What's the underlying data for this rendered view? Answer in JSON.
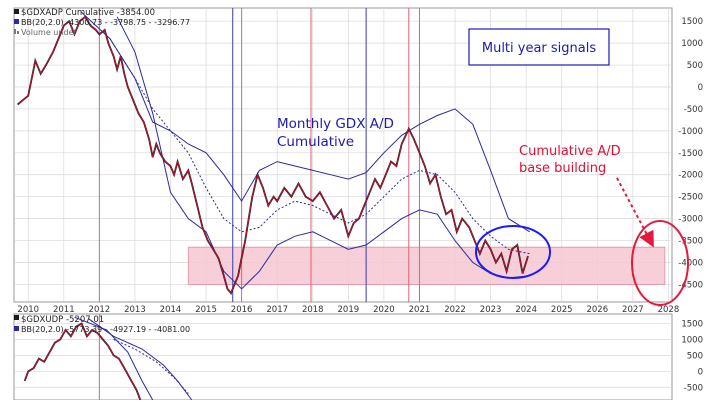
{
  "chart_data": [
    {
      "type": "line",
      "legend": [
        {
          "label": "$GDXADP Cumulative -3854.00",
          "marker": "black-square"
        },
        {
          "label": "BB(20,2.0) -4300.73 - -3798.75 - -3296.77",
          "marker": "blue-square"
        },
        {
          "label": "Volume undef",
          "marker": "grey-bars"
        }
      ],
      "annotations": [
        {
          "text": "Multi year signals",
          "boxed": true
        },
        {
          "text": "Monthly GDX A/D"
        },
        {
          "text": "Cumulative"
        },
        {
          "text": "Cumulative A/D"
        },
        {
          "text": "base building"
        }
      ],
      "x_ticks": [
        "2010",
        "2011",
        "2012",
        "2013",
        "2014",
        "2015",
        "2016",
        "2017",
        "2018",
        "2019",
        "2020",
        "2021",
        "2022",
        "2023",
        "2024",
        "2025",
        "2026",
        "2027",
        "2028"
      ],
      "y_ticks": [
        1500,
        1000,
        500,
        0,
        -500,
        -1000,
        -1500,
        -2000,
        -2500,
        -3000,
        -3500,
        -4000,
        -4500
      ],
      "xlim": [
        2009.6,
        2028.1
      ],
      "ylim": [
        -4900,
        1800
      ],
      "vlines": {
        "red": [
          2012.0,
          2016.0,
          2017.95,
          2020.7,
          2021.0
        ],
        "blue": [
          2015.75,
          2019.5
        ]
      },
      "base_zone": {
        "x": [
          2014.5,
          2027.9
        ],
        "y": [
          -4500,
          -3650
        ]
      },
      "price": [
        [
          2009.7,
          -400
        ],
        [
          2009.85,
          -300
        ],
        [
          2010.0,
          -200
        ],
        [
          2010.1,
          200
        ],
        [
          2010.2,
          600
        ],
        [
          2010.35,
          300
        ],
        [
          2010.5,
          500
        ],
        [
          2010.7,
          800
        ],
        [
          2010.85,
          1100
        ],
        [
          2011.0,
          1400
        ],
        [
          2011.15,
          1500
        ],
        [
          2011.3,
          1200
        ],
        [
          2011.45,
          1500
        ],
        [
          2011.6,
          1600
        ],
        [
          2011.75,
          1400
        ],
        [
          2011.9,
          1300
        ],
        [
          2012.0,
          1200
        ],
        [
          2012.15,
          1300
        ],
        [
          2012.25,
          1000
        ],
        [
          2012.4,
          700
        ],
        [
          2012.5,
          400
        ],
        [
          2012.6,
          700
        ],
        [
          2012.7,
          300
        ],
        [
          2012.8,
          0
        ],
        [
          2012.9,
          -200
        ],
        [
          2013.0,
          -400
        ],
        [
          2013.1,
          -600
        ],
        [
          2013.25,
          -800
        ],
        [
          2013.4,
          -1200
        ],
        [
          2013.5,
          -1600
        ],
        [
          2013.6,
          -1300
        ],
        [
          2013.7,
          -1500
        ],
        [
          2013.85,
          -1700
        ],
        [
          2014.0,
          -1800
        ],
        [
          2014.1,
          -2000
        ],
        [
          2014.2,
          -1700
        ],
        [
          2014.35,
          -2100
        ],
        [
          2014.5,
          -1900
        ],
        [
          2014.6,
          -2200
        ],
        [
          2014.75,
          -2700
        ],
        [
          2014.9,
          -3200
        ],
        [
          2015.05,
          -3500
        ],
        [
          2015.2,
          -3700
        ],
        [
          2015.35,
          -3900
        ],
        [
          2015.5,
          -4300
        ],
        [
          2015.6,
          -4600
        ],
        [
          2015.7,
          -4700
        ],
        [
          2015.8,
          -4500
        ],
        [
          2015.9,
          -4300
        ],
        [
          2016.0,
          -3900
        ],
        [
          2016.1,
          -3500
        ],
        [
          2016.2,
          -3000
        ],
        [
          2016.3,
          -2500
        ],
        [
          2016.45,
          -2000
        ],
        [
          2016.6,
          -2300
        ],
        [
          2016.75,
          -2700
        ],
        [
          2016.9,
          -2500
        ],
        [
          2017.0,
          -2600
        ],
        [
          2017.2,
          -2300
        ],
        [
          2017.4,
          -2500
        ],
        [
          2017.6,
          -2200
        ],
        [
          2017.8,
          -2500
        ],
        [
          2018.0,
          -2600
        ],
        [
          2018.2,
          -2400
        ],
        [
          2018.4,
          -2700
        ],
        [
          2018.6,
          -3000
        ],
        [
          2018.8,
          -2800
        ],
        [
          2019.0,
          -3400
        ],
        [
          2019.15,
          -3100
        ],
        [
          2019.3,
          -3000
        ],
        [
          2019.45,
          -2700
        ],
        [
          2019.6,
          -2400
        ],
        [
          2019.75,
          -2100
        ],
        [
          2019.9,
          -2300
        ],
        [
          2020.05,
          -2000
        ],
        [
          2020.2,
          -1700
        ],
        [
          2020.35,
          -1800
        ],
        [
          2020.5,
          -1300
        ],
        [
          2020.7,
          -950
        ],
        [
          2020.85,
          -1200
        ],
        [
          2021.0,
          -1500
        ],
        [
          2021.15,
          -1800
        ],
        [
          2021.3,
          -2200
        ],
        [
          2021.45,
          -2000
        ],
        [
          2021.6,
          -2500
        ],
        [
          2021.75,
          -2900
        ],
        [
          2021.9,
          -2800
        ],
        [
          2022.05,
          -3300
        ],
        [
          2022.2,
          -3000
        ],
        [
          2022.4,
          -3200
        ],
        [
          2022.55,
          -3500
        ],
        [
          2022.7,
          -3800
        ],
        [
          2022.85,
          -3500
        ],
        [
          2023.0,
          -3700
        ],
        [
          2023.15,
          -4000
        ],
        [
          2023.3,
          -3800
        ],
        [
          2023.45,
          -4200
        ],
        [
          2023.6,
          -3700
        ],
        [
          2023.75,
          -3600
        ],
        [
          2023.9,
          -4250
        ],
        [
          2024.05,
          -3854
        ]
      ],
      "bb_upper": [
        [
          2011.5,
          1700
        ],
        [
          2012.3,
          1100
        ],
        [
          2013.0,
          200
        ],
        [
          2013.5,
          -800
        ],
        [
          2014.0,
          -1000
        ],
        [
          2014.5,
          -1300
        ],
        [
          2015.0,
          -1500
        ],
        [
          2015.5,
          -2000
        ],
        [
          2016.0,
          -2600
        ],
        [
          2016.5,
          -1900
        ],
        [
          2017.0,
          -1700
        ],
        [
          2017.5,
          -1800
        ],
        [
          2018.0,
          -1900
        ],
        [
          2018.5,
          -2000
        ],
        [
          2019.0,
          -2100
        ],
        [
          2019.5,
          -1950
        ],
        [
          2020.0,
          -1500
        ],
        [
          2020.5,
          -1100
        ],
        [
          2021.0,
          -850
        ],
        [
          2021.5,
          -650
        ],
        [
          2022.0,
          -500
        ],
        [
          2022.5,
          -850
        ],
        [
          2023.0,
          -1900
        ],
        [
          2023.5,
          -3000
        ],
        [
          2024.1,
          -3300
        ]
      ],
      "bb_mid": [
        [
          2012.3,
          1100
        ],
        [
          2013.0,
          200
        ],
        [
          2013.5,
          -500
        ],
        [
          2014.0,
          -1000
        ],
        [
          2014.5,
          -1500
        ],
        [
          2015.0,
          -2300
        ],
        [
          2015.5,
          -3000
        ],
        [
          2016.0,
          -3300
        ],
        [
          2016.5,
          -3200
        ],
        [
          2017.0,
          -2800
        ],
        [
          2017.5,
          -2600
        ],
        [
          2018.0,
          -2700
        ],
        [
          2018.5,
          -2900
        ],
        [
          2019.0,
          -3100
        ],
        [
          2019.5,
          -2900
        ],
        [
          2020.0,
          -2500
        ],
        [
          2020.5,
          -2100
        ],
        [
          2021.0,
          -1900
        ],
        [
          2021.5,
          -2000
        ],
        [
          2022.0,
          -2400
        ],
        [
          2022.5,
          -3000
        ],
        [
          2023.0,
          -3400
        ],
        [
          2023.5,
          -3700
        ],
        [
          2024.1,
          -3800
        ]
      ],
      "bb_lower": [
        [
          2012.5,
          1600
        ],
        [
          2013.0,
          800
        ],
        [
          2013.5,
          -600
        ],
        [
          2014.0,
          -2400
        ],
        [
          2014.5,
          -3000
        ],
        [
          2015.0,
          -3300
        ],
        [
          2015.5,
          -4200
        ],
        [
          2016.0,
          -4600
        ],
        [
          2016.5,
          -4200
        ],
        [
          2017.0,
          -3600
        ],
        [
          2017.5,
          -3400
        ],
        [
          2018.0,
          -3300
        ],
        [
          2018.5,
          -3500
        ],
        [
          2019.0,
          -3700
        ],
        [
          2019.5,
          -3600
        ],
        [
          2020.0,
          -3300
        ],
        [
          2020.5,
          -3000
        ],
        [
          2021.0,
          -2800
        ],
        [
          2021.5,
          -2900
        ],
        [
          2022.0,
          -3500
        ],
        [
          2022.5,
          -4000
        ],
        [
          2023.0,
          -4250
        ],
        [
          2023.5,
          -4350
        ],
        [
          2024.1,
          -4300
        ]
      ]
    },
    {
      "type": "line",
      "legend": [
        {
          "label": "$GDXUDP -5207.01",
          "marker": "black-square"
        },
        {
          "label": "BB(20,2.0) -5773.39 - -4927.19 - -4081.00",
          "marker": "blue-square"
        }
      ],
      "y_ticks": [
        1500,
        1000,
        500,
        0,
        -500
      ],
      "xlim": [
        2009.6,
        2028.1
      ],
      "ylim": [
        -900,
        1800
      ],
      "vlines": {
        "red": [
          2012.0
        ],
        "blue": []
      },
      "price": [
        [
          2009.9,
          -300
        ],
        [
          2010.0,
          0
        ],
        [
          2010.15,
          100
        ],
        [
          2010.3,
          400
        ],
        [
          2010.45,
          300
        ],
        [
          2010.6,
          600
        ],
        [
          2010.75,
          900
        ],
        [
          2010.9,
          1000
        ],
        [
          2011.05,
          1300
        ],
        [
          2011.2,
          1100
        ],
        [
          2011.35,
          1400
        ],
        [
          2011.5,
          1500
        ],
        [
          2011.65,
          1100
        ],
        [
          2011.8,
          1300
        ],
        [
          2011.95,
          1200
        ],
        [
          2012.1,
          1000
        ],
        [
          2012.25,
          800
        ],
        [
          2012.4,
          500
        ],
        [
          2012.55,
          400
        ],
        [
          2012.7,
          100
        ],
        [
          2012.85,
          -200
        ],
        [
          2012.95,
          -400
        ],
        [
          2013.05,
          -600
        ],
        [
          2013.15,
          -900
        ]
      ],
      "bb_upper": [
        [
          2011.7,
          1650
        ],
        [
          2012.4,
          1100
        ],
        [
          2013.2,
          700
        ],
        [
          2013.8,
          200
        ],
        [
          2014.2,
          -300
        ],
        [
          2014.6,
          -900
        ]
      ],
      "bb_mid": [
        [
          2012.4,
          1000
        ],
        [
          2013.0,
          700
        ],
        [
          2013.6,
          300
        ],
        [
          2014.1,
          -200
        ],
        [
          2014.5,
          -700
        ]
      ],
      "bb_lower": [
        [
          2011.3,
          1700
        ],
        [
          2012.2,
          1300
        ],
        [
          2012.8,
          600
        ],
        [
          2013.2,
          -300
        ],
        [
          2013.5,
          -900
        ]
      ]
    }
  ],
  "colors": {
    "price": "#1a1a1a",
    "price_red": "#cc1133",
    "band": "#2a2aa0",
    "mid": "#2a2aa0",
    "grid": "#d8d8d8",
    "vline_red": "#e0607a",
    "vline_blue": "#3a3ab0",
    "zone_fill": "#f6c7d1",
    "zone_edge": "#e08aa0",
    "annotation_blue": "#1b1bb0",
    "annotation_red": "#dd1133",
    "circle_blue": "#1a1aff",
    "circle_red": "#e3193d"
  }
}
